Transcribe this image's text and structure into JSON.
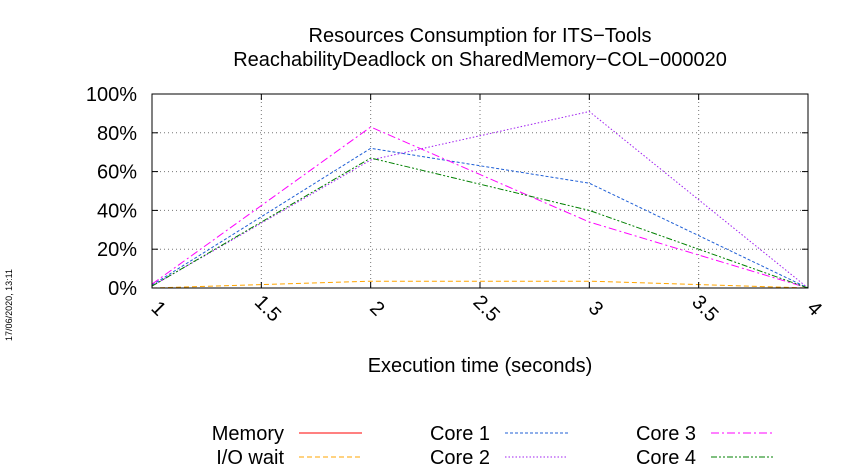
{
  "timestamp": "17/06/2020, 13:11",
  "chart_data": {
    "type": "line",
    "title": "Resources Consumption for ITS−Tools",
    "subtitle": "ReachabilityDeadlock on SharedMemory−COL−000020",
    "xlabel": "Execution time (seconds)",
    "ylabel": "",
    "xlim": [
      1,
      4
    ],
    "ylim": [
      0,
      100
    ],
    "grid": true,
    "legend_position": "bottom",
    "x_ticks": [
      {
        "value": 1,
        "label": "1"
      },
      {
        "value": 1.5,
        "label": "1.5"
      },
      {
        "value": 2,
        "label": "2"
      },
      {
        "value": 2.5,
        "label": "2.5"
      },
      {
        "value": 3,
        "label": "3"
      },
      {
        "value": 3.5,
        "label": "3.5"
      },
      {
        "value": 4,
        "label": "4"
      }
    ],
    "y_ticks": [
      {
        "value": 0,
        "label": "0%"
      },
      {
        "value": 20,
        "label": "20%"
      },
      {
        "value": 40,
        "label": "40%"
      },
      {
        "value": 60,
        "label": "60%"
      },
      {
        "value": 80,
        "label": "80%"
      },
      {
        "value": 100,
        "label": "100%"
      }
    ],
    "x": [
      1,
      2,
      3,
      4
    ],
    "series": [
      {
        "name": "Memory",
        "color": "#ff0000",
        "dash": "solid",
        "values": [
          0,
          0,
          0,
          0
        ]
      },
      {
        "name": "I/O wait",
        "color": "#ffa500",
        "dash": "dashed",
        "values": [
          0,
          3.5,
          3.5,
          0
        ]
      },
      {
        "name": "Core 1",
        "color": "#1f5fd6",
        "dash": "dotted-dash",
        "values": [
          1.5,
          72,
          54,
          0
        ]
      },
      {
        "name": "Core 2",
        "color": "#a020f0",
        "dash": "dotted",
        "values": [
          1,
          66,
          91,
          0
        ]
      },
      {
        "name": "Core 3",
        "color": "#ff00ff",
        "dash": "dash-dot",
        "values": [
          2,
          83,
          34,
          0
        ]
      },
      {
        "name": "Core 4",
        "color": "#008000",
        "dash": "dash-dot-dot",
        "values": [
          1,
          67,
          40,
          0
        ]
      }
    ]
  }
}
